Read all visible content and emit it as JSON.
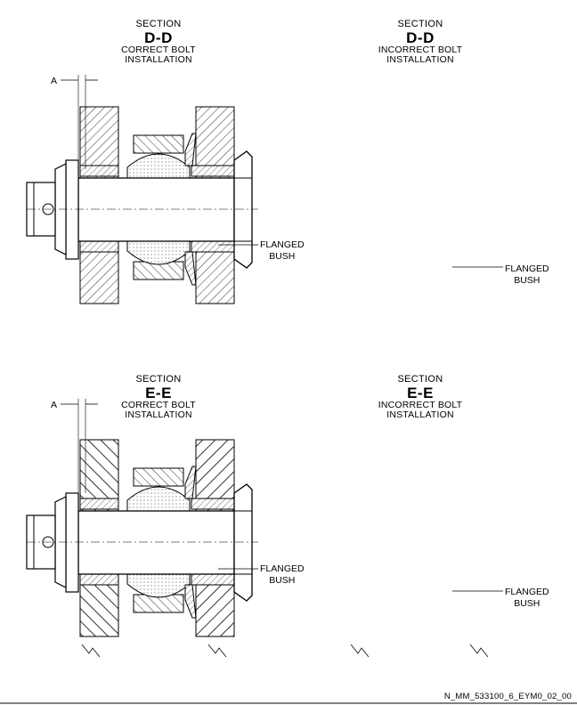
{
  "panels": [
    {
      "id": "dd-correct",
      "section_word": "SECTION",
      "section_id": "D-D",
      "line1": "CORRECT BOLT",
      "line2": "INSTALLATION",
      "callout1": "FLANGED",
      "callout2": "BUSH",
      "dim": "A"
    },
    {
      "id": "dd-incorrect",
      "section_word": "SECTION",
      "section_id": "D-D",
      "line1": "INCORRECT BOLT",
      "line2": "INSTALLATION",
      "callout1": "FLANGED",
      "callout2": "BUSH"
    },
    {
      "id": "ee-correct",
      "section_word": "SECTION",
      "section_id": "E-E",
      "line1": "CORRECT BOLT",
      "line2": "INSTALLATION",
      "callout1": "FLANGED",
      "callout2": "BUSH",
      "dim": "A"
    },
    {
      "id": "ee-incorrect",
      "section_word": "SECTION",
      "section_id": "E-E",
      "line1": "INCORRECT BOLT",
      "line2": "INSTALLATION",
      "callout1": "FLANGED",
      "callout2": "BUSH"
    }
  ],
  "reference": "N_MM_533100_6_EYM0_02_00"
}
